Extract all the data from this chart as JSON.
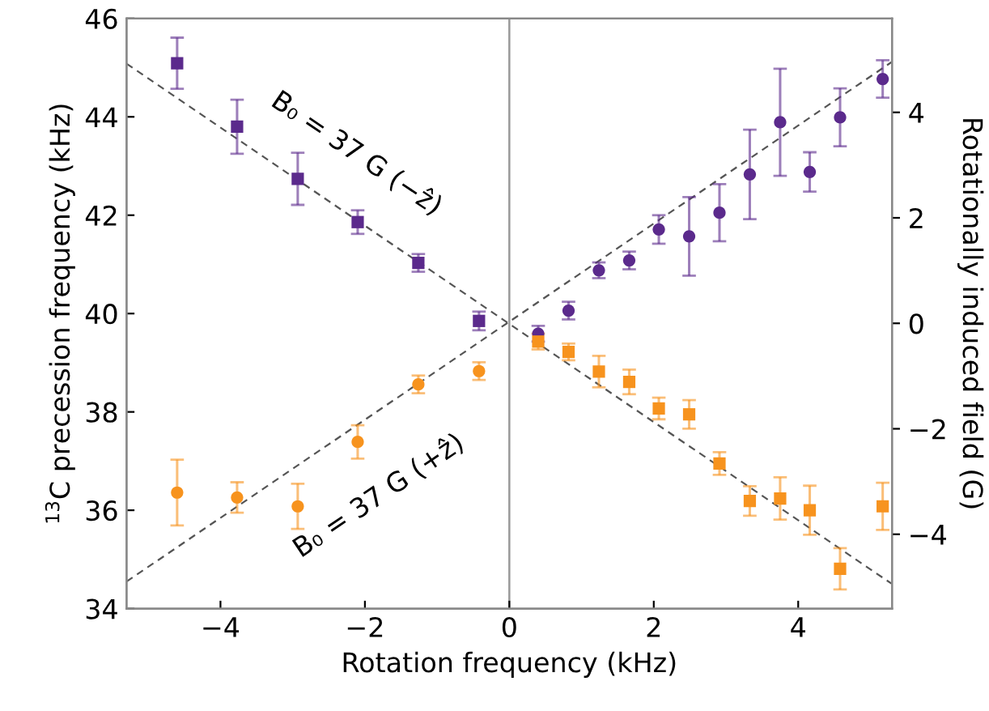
{
  "chart_data": {
    "type": "scatter",
    "xlabel": "Rotation frequency (kHz)",
    "ylabel": "$^{13}$C precession frequency (kHz)",
    "y2label": "Rotationally induced field (G)",
    "xlim": [
      -5.3,
      5.3
    ],
    "xticks": [
      {
        "value": -4,
        "label": "−4"
      },
      {
        "value": -2,
        "label": "−2"
      },
      0,
      2,
      4
    ],
    "ylim": [
      34,
      46
    ],
    "yticks": [
      34,
      36,
      38,
      40,
      42,
      44,
      46
    ],
    "y2lim": [
      -5.41,
      5.78
    ],
    "y2ticks": [
      {
        "value": -4,
        "label": "−4"
      },
      {
        "value": -2,
        "label": "−2"
      },
      0,
      2,
      4
    ],
    "grid": false,
    "legend": false,
    "series": [
      {
        "marker": "square",
        "color": "#5b2a8c",
        "x": [
          -4.6,
          -3.77,
          -2.93,
          -2.1,
          -1.26,
          -0.42
        ],
        "values": [
          45.09,
          43.8,
          42.74,
          41.86,
          41.03,
          39.85
        ],
        "errors": [
          0.52,
          0.55,
          0.53,
          0.24,
          0.18,
          0.19
        ]
      },
      {
        "marker": "circle",
        "color": "#5b2a8c",
        "x": [
          0.4,
          0.82,
          1.24,
          1.66,
          2.07,
          2.49,
          2.91,
          3.33,
          3.75,
          4.16,
          4.58,
          5.17
        ],
        "values": [
          39.59,
          40.06,
          40.88,
          41.08,
          41.71,
          41.57,
          42.05,
          42.83,
          43.89,
          42.88,
          43.99,
          44.77
        ],
        "errors": [
          0.16,
          0.18,
          0.16,
          0.18,
          0.29,
          0.8,
          0.58,
          0.91,
          1.09,
          0.4,
          0.59,
          0.38
        ]
      },
      {
        "marker": "circle",
        "color": "#f7931e",
        "x": [
          -4.6,
          -3.77,
          -2.93,
          -2.1,
          -1.26,
          -0.42
        ],
        "values": [
          36.36,
          36.26,
          36.08,
          37.39,
          38.56,
          38.83
        ],
        "errors": [
          0.67,
          0.31,
          0.46,
          0.34,
          0.18,
          0.18
        ]
      },
      {
        "marker": "square",
        "color": "#f7931e",
        "x": [
          0.4,
          0.82,
          1.24,
          1.66,
          2.07,
          2.49,
          2.91,
          3.33,
          3.75,
          4.16,
          4.58,
          5.17
        ],
        "values": [
          39.43,
          39.22,
          38.82,
          38.61,
          38.07,
          37.95,
          36.95,
          36.19,
          36.24,
          36.0,
          34.81,
          36.08
        ],
        "errors": [
          0.16,
          0.17,
          0.32,
          0.25,
          0.22,
          0.29,
          0.23,
          0.3,
          0.43,
          0.5,
          0.42,
          0.48
        ]
      },
      {
        "type": "line",
        "line_style": "dashed",
        "marker": "none",
        "color": "#555555",
        "x": [
          -5.3,
          5.3
        ],
        "values": [
          45.08,
          34.5
        ]
      },
      {
        "type": "line",
        "line_style": "dashed",
        "marker": "none",
        "color": "#555555",
        "x": [
          -5.3,
          5.3
        ],
        "values": [
          34.55,
          45.12
        ]
      }
    ],
    "ref_lines": [
      {
        "axis": "x",
        "value": 0,
        "color": "#999999",
        "line_style": "solid"
      }
    ],
    "annotations": [
      "B₀ = 37 G (−ẑ)",
      "B₀ = 37 G (+ẑ)"
    ]
  }
}
